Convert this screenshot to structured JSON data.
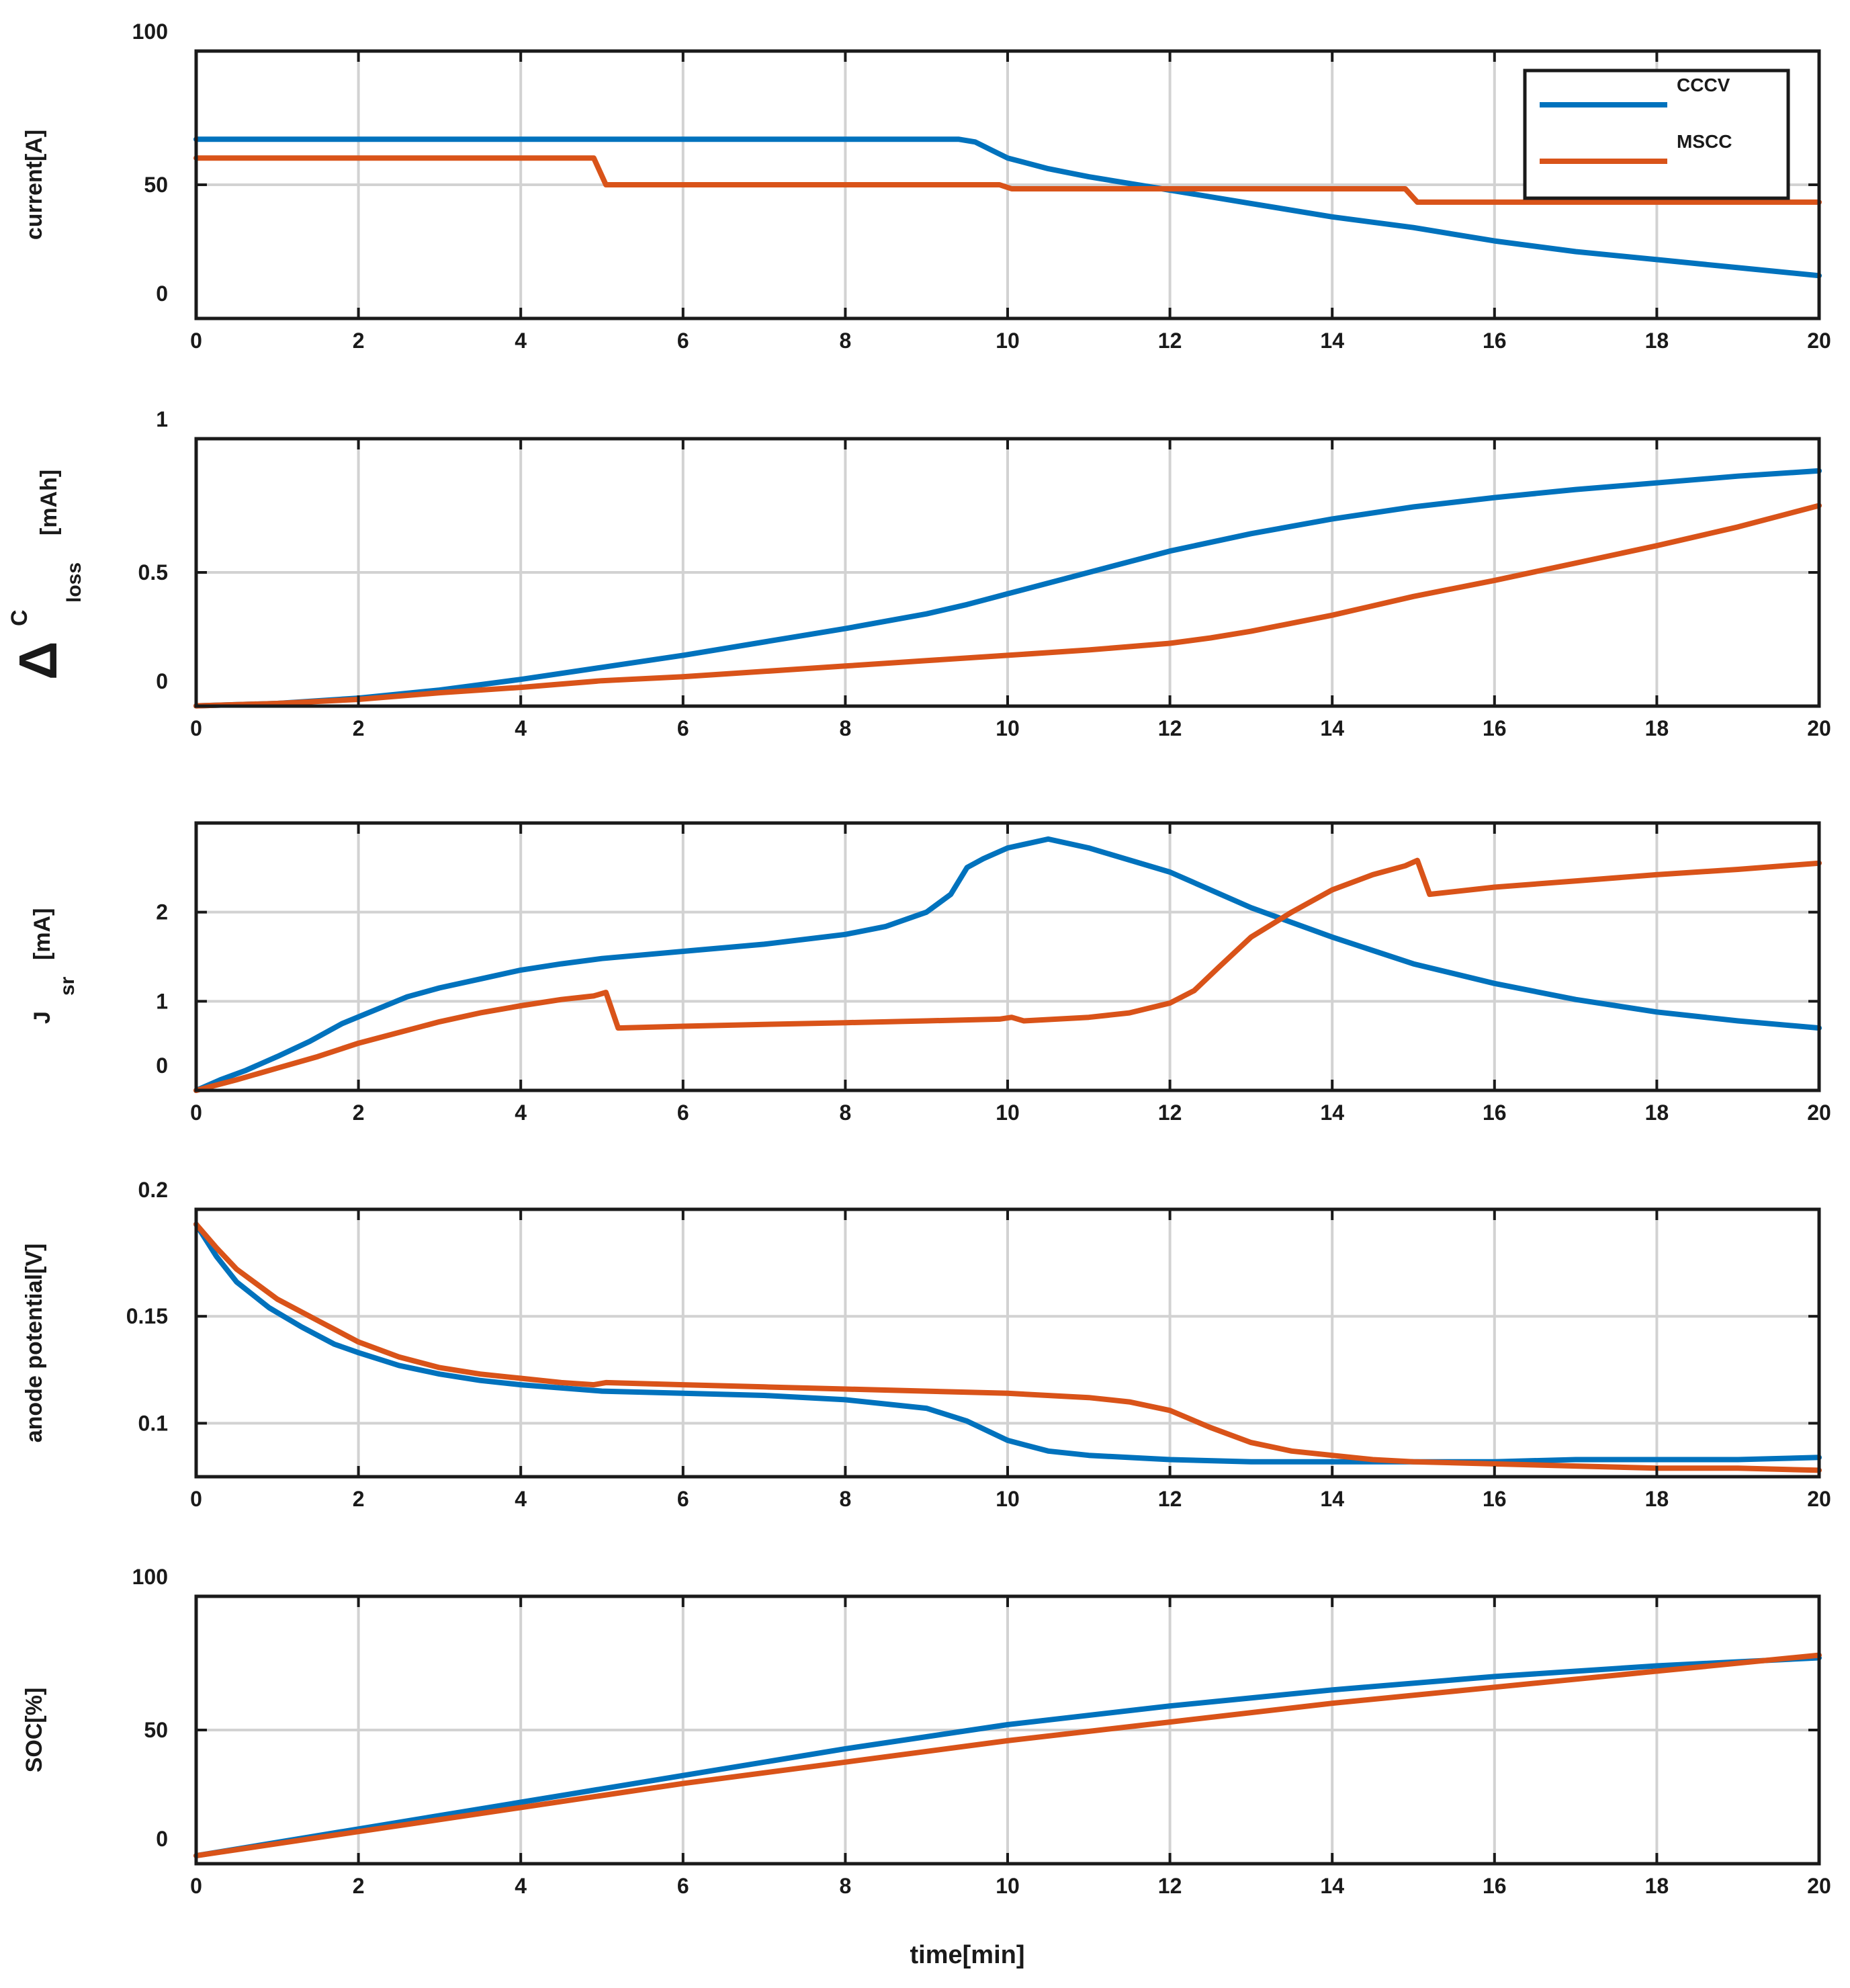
{
  "chart_data": [
    {
      "type": "line",
      "id": "current",
      "ylabel": "current[A]",
      "xlim": [
        0,
        20
      ],
      "ylim": [
        0,
        100
      ],
      "ytick_values": [
        0,
        50,
        100
      ],
      "ytick_labels": [
        "0",
        "50",
        "100"
      ],
      "ygrid_values": [
        0,
        50
      ],
      "xtick_values": [
        0,
        2,
        4,
        6,
        8,
        10,
        12,
        14,
        16,
        18,
        20
      ],
      "xtick_labels": [
        "0",
        "2",
        "4",
        "6",
        "8",
        "10",
        "12",
        "14",
        "16",
        "18",
        "20"
      ],
      "legend": {
        "position": "top-right",
        "entries": [
          "CCCV",
          "MSCC"
        ]
      },
      "series": [
        {
          "name": "CCCV",
          "color": "#0072BD",
          "x": [
            0,
            9.4,
            9.6,
            9.8,
            10,
            10.5,
            11,
            12,
            13,
            14,
            15,
            16,
            17,
            18,
            19,
            20
          ],
          "y": [
            67,
            67,
            66,
            63,
            60,
            56,
            53,
            48,
            43,
            38,
            34,
            29,
            25,
            22,
            19,
            16
          ]
        },
        {
          "name": "MSCC",
          "color": "#D95319",
          "x": [
            0,
            4.9,
            5.05,
            9.9,
            10.05,
            14.9,
            15.05,
            20
          ],
          "y": [
            60,
            60,
            50,
            50,
            48.5,
            48.5,
            43.5,
            43.5
          ]
        }
      ]
    },
    {
      "type": "line",
      "id": "closs",
      "ylabel_symbol": "Δ",
      "ylabel_main": "C",
      "ylabel_sub": "loss",
      "ylabel_unit": "[mAh]",
      "xlim": [
        0,
        20
      ],
      "ylim": [
        0,
        1
      ],
      "ytick_values": [
        0,
        0.5,
        1
      ],
      "ytick_labels": [
        "0",
        "0.5",
        "1"
      ],
      "ygrid_values": [
        0,
        0.5
      ],
      "xtick_values": [
        0,
        2,
        4,
        6,
        8,
        10,
        12,
        14,
        16,
        18,
        20
      ],
      "xtick_labels": [
        "0",
        "2",
        "4",
        "6",
        "8",
        "10",
        "12",
        "14",
        "16",
        "18",
        "20"
      ],
      "series": [
        {
          "name": "CCCV",
          "color": "#0072BD",
          "x": [
            0,
            1,
            2,
            3,
            4,
            5,
            6,
            7,
            8,
            9,
            9.5,
            10,
            11,
            12,
            13,
            14,
            15,
            16,
            17,
            18,
            19,
            20
          ],
          "y": [
            0.001,
            0.01,
            0.03,
            0.06,
            0.1,
            0.145,
            0.19,
            0.24,
            0.29,
            0.345,
            0.38,
            0.42,
            0.5,
            0.58,
            0.645,
            0.7,
            0.745,
            0.78,
            0.81,
            0.835,
            0.86,
            0.88
          ]
        },
        {
          "name": "MSCC",
          "color": "#D95319",
          "x": [
            0,
            1,
            2,
            3,
            4,
            5,
            6,
            7,
            8,
            9,
            10,
            11,
            12,
            12.5,
            13,
            14,
            15,
            16,
            17,
            18,
            19,
            20
          ],
          "y": [
            0.001,
            0.01,
            0.025,
            0.05,
            0.07,
            0.095,
            0.11,
            0.13,
            0.15,
            0.17,
            0.19,
            0.21,
            0.235,
            0.255,
            0.28,
            0.34,
            0.41,
            0.47,
            0.535,
            0.6,
            0.67,
            0.75
          ]
        }
      ]
    },
    {
      "type": "line",
      "id": "jsr",
      "ylabel_main": "J",
      "ylabel_sub": "sr",
      "ylabel_unit": "[mA]",
      "xlim": [
        0,
        20
      ],
      "ylim": [
        0,
        3
      ],
      "ytick_values": [
        0,
        1,
        2
      ],
      "ytick_labels": [
        "0",
        "1",
        "2"
      ],
      "ygrid_values": [
        1,
        2
      ],
      "xtick_values": [
        0,
        2,
        4,
        6,
        8,
        10,
        12,
        14,
        16,
        18,
        20
      ],
      "xtick_labels": [
        "0",
        "2",
        "4",
        "6",
        "8",
        "10",
        "12",
        "14",
        "16",
        "18",
        "20"
      ],
      "series": [
        {
          "name": "CCCV",
          "color": "#0072BD",
          "x": [
            0,
            0.3,
            0.6,
            1,
            1.4,
            1.8,
            2.2,
            2.6,
            3,
            3.5,
            4,
            4.5,
            5,
            6,
            7,
            8,
            8.5,
            9,
            9.3,
            9.5,
            9.7,
            10,
            10.5,
            11,
            12,
            13,
            14,
            15,
            16,
            17,
            18,
            19,
            20
          ],
          "y": [
            0,
            0.12,
            0.22,
            0.38,
            0.55,
            0.75,
            0.9,
            1.05,
            1.15,
            1.25,
            1.35,
            1.42,
            1.48,
            1.56,
            1.64,
            1.75,
            1.84,
            2.0,
            2.2,
            2.5,
            2.6,
            2.72,
            2.82,
            2.72,
            2.45,
            2.05,
            1.72,
            1.42,
            1.2,
            1.02,
            0.88,
            0.78,
            0.7
          ]
        },
        {
          "name": "MSCC",
          "color": "#D95319",
          "x": [
            0,
            0.5,
            1,
            1.5,
            2,
            2.5,
            3,
            3.5,
            4,
            4.5,
            4.9,
            5.05,
            5.2,
            6,
            7,
            8,
            9,
            9.9,
            10.05,
            10.2,
            11,
            11.5,
            12,
            12.3,
            12.6,
            13,
            13.5,
            14,
            14.5,
            14.9,
            15.05,
            15.2,
            16,
            17,
            18,
            19,
            20
          ],
          "y": [
            0,
            0.12,
            0.25,
            0.38,
            0.53,
            0.65,
            0.77,
            0.87,
            0.95,
            1.02,
            1.06,
            1.1,
            0.7,
            0.72,
            0.74,
            0.76,
            0.78,
            0.8,
            0.82,
            0.78,
            0.82,
            0.87,
            0.98,
            1.12,
            1.38,
            1.72,
            2.0,
            2.25,
            2.42,
            2.52,
            2.58,
            2.2,
            2.28,
            2.35,
            2.42,
            2.48,
            2.55
          ]
        }
      ]
    },
    {
      "type": "line",
      "id": "anode",
      "ylabel": "anode potential[V]",
      "xlim": [
        0,
        20
      ],
      "ylim": [
        0.075,
        0.2
      ],
      "ytick_values": [
        0.1,
        0.15,
        0.2
      ],
      "ytick_labels": [
        "0.1",
        "0.15",
        "0.2"
      ],
      "ygrid_values": [
        0.1,
        0.15
      ],
      "xtick_values": [
        0,
        2,
        4,
        6,
        8,
        10,
        12,
        14,
        16,
        18,
        20
      ],
      "xtick_labels": [
        "0",
        "2",
        "4",
        "6",
        "8",
        "10",
        "12",
        "14",
        "16",
        "18",
        "20"
      ],
      "series": [
        {
          "name": "CCCV",
          "color": "#0072BD",
          "x": [
            0,
            0.25,
            0.5,
            0.9,
            1.3,
            1.7,
            2,
            2.5,
            3,
            3.5,
            4,
            5,
            6,
            7,
            8,
            9,
            9.5,
            10,
            10.5,
            11,
            12,
            13,
            14,
            15,
            16,
            17,
            18,
            19,
            20
          ],
          "y": [
            0.193,
            0.178,
            0.166,
            0.154,
            0.145,
            0.137,
            0.133,
            0.127,
            0.123,
            0.12,
            0.118,
            0.115,
            0.114,
            0.113,
            0.111,
            0.107,
            0.101,
            0.092,
            0.087,
            0.085,
            0.083,
            0.082,
            0.082,
            0.082,
            0.082,
            0.083,
            0.083,
            0.083,
            0.084
          ]
        },
        {
          "name": "MSCC",
          "color": "#D95319",
          "x": [
            0,
            0.25,
            0.5,
            1,
            1.5,
            2,
            2.5,
            3,
            3.5,
            4,
            4.5,
            4.9,
            5.05,
            6,
            7,
            8,
            9,
            10,
            11,
            11.5,
            12,
            12.5,
            13,
            13.5,
            14,
            14.5,
            15,
            16,
            17,
            18,
            19,
            20
          ],
          "y": [
            0.193,
            0.182,
            0.172,
            0.158,
            0.148,
            0.138,
            0.131,
            0.126,
            0.123,
            0.121,
            0.119,
            0.118,
            0.119,
            0.118,
            0.117,
            0.116,
            0.115,
            0.114,
            0.112,
            0.11,
            0.106,
            0.098,
            0.091,
            0.087,
            0.085,
            0.083,
            0.082,
            0.081,
            0.08,
            0.079,
            0.079,
            0.078
          ]
        }
      ]
    },
    {
      "type": "line",
      "id": "soc",
      "ylabel": "SOC[%]",
      "xlim": [
        0,
        20
      ],
      "ylim": [
        0,
        100
      ],
      "ytick_values": [
        0,
        50,
        100
      ],
      "ytick_labels": [
        "0",
        "50",
        "100"
      ],
      "ygrid_values": [
        50
      ],
      "xtick_values": [
        0,
        2,
        4,
        6,
        8,
        10,
        12,
        14,
        16,
        18,
        20
      ],
      "xtick_labels": [
        "0",
        "2",
        "4",
        "6",
        "8",
        "10",
        "12",
        "14",
        "16",
        "18",
        "20"
      ],
      "xlabel": "time[min]",
      "series": [
        {
          "name": "CCCV",
          "color": "#0072BD",
          "x": [
            0,
            2,
            4,
            6,
            8,
            10,
            12,
            14,
            16,
            18,
            20
          ],
          "y": [
            3,
            13,
            23,
            33,
            43,
            52,
            59,
            65,
            70,
            74,
            77
          ]
        },
        {
          "name": "MSCC",
          "color": "#D95319",
          "x": [
            0,
            2,
            4,
            6,
            8,
            10,
            12,
            14,
            16,
            18,
            20
          ],
          "y": [
            3,
            12,
            21,
            30,
            38,
            46,
            53,
            60,
            66,
            72,
            78
          ]
        }
      ]
    }
  ]
}
